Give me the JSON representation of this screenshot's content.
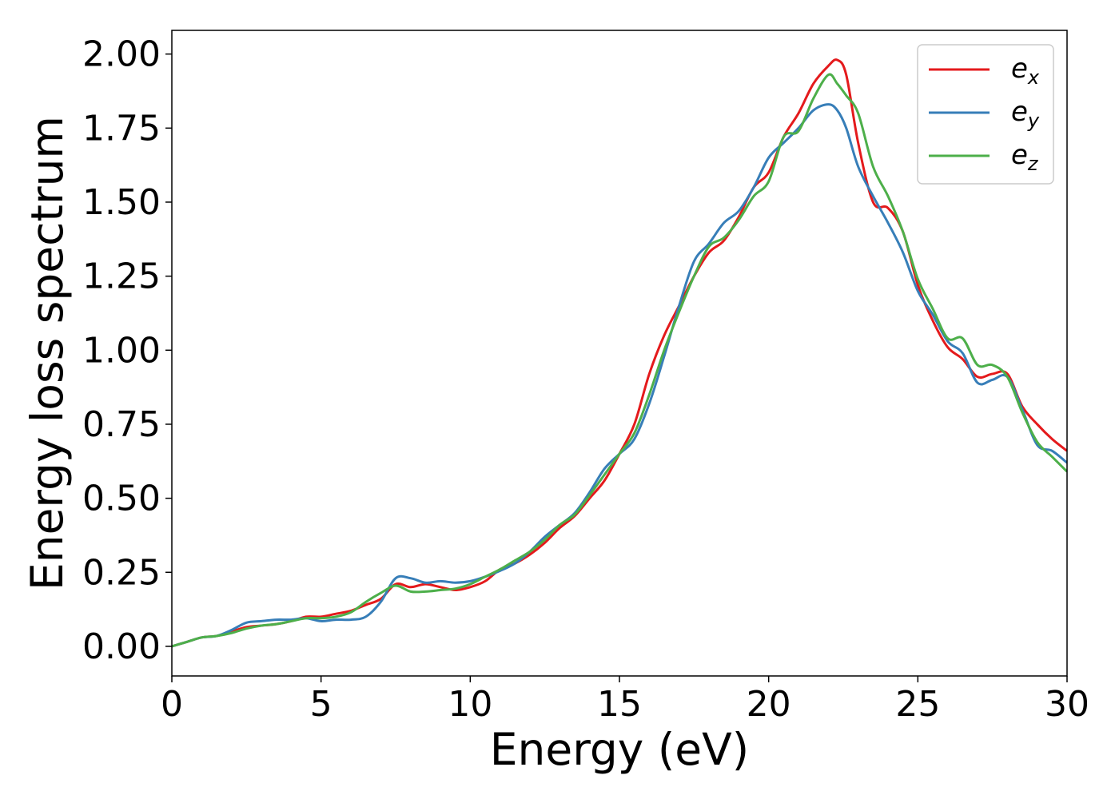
{
  "chart_data": {
    "type": "line",
    "title": "",
    "xlabel": "Energy (eV)",
    "ylabel": "Energy loss spectrum",
    "xlim": [
      0,
      30
    ],
    "ylim": [
      -0.1,
      2.08
    ],
    "xticks": [
      0,
      5,
      10,
      15,
      20,
      25,
      30
    ],
    "xtick_labels": [
      "0",
      "5",
      "10",
      "15",
      "20",
      "25",
      "30"
    ],
    "yticks": [
      0,
      0.25,
      0.5,
      0.75,
      1.0,
      1.25,
      1.5,
      1.75,
      2.0
    ],
    "ytick_labels": [
      "0.00",
      "0.25",
      "0.50",
      "0.75",
      "1.00",
      "1.25",
      "1.50",
      "1.75",
      "2.00"
    ],
    "grid": false,
    "legend_position": "top-right",
    "series": [
      {
        "name": "e_x",
        "label_main": "e",
        "label_sub": "x",
        "color": "#e41a1c",
        "x": [
          0,
          0.5,
          1,
          1.5,
          2,
          2.5,
          3,
          3.5,
          4,
          4.5,
          5,
          5.5,
          6,
          6.5,
          7,
          7.5,
          8,
          8.5,
          9,
          9.5,
          10,
          10.5,
          11,
          11.5,
          12,
          12.5,
          13,
          13.5,
          14,
          14.5,
          15,
          15.5,
          16,
          16.5,
          17,
          17.5,
          18,
          18.5,
          19,
          19.5,
          20,
          20.5,
          21,
          21.5,
          22,
          22.3,
          22.6,
          23,
          23.5,
          24,
          24.5,
          25,
          25.5,
          26,
          26.5,
          27,
          27.5,
          28,
          28.5,
          29,
          29.5,
          30
        ],
        "y": [
          0.0,
          0.015,
          0.03,
          0.035,
          0.05,
          0.065,
          0.07,
          0.075,
          0.085,
          0.1,
          0.1,
          0.11,
          0.12,
          0.14,
          0.16,
          0.21,
          0.2,
          0.21,
          0.2,
          0.19,
          0.2,
          0.22,
          0.26,
          0.28,
          0.31,
          0.35,
          0.4,
          0.44,
          0.5,
          0.56,
          0.65,
          0.75,
          0.92,
          1.05,
          1.15,
          1.25,
          1.33,
          1.37,
          1.45,
          1.55,
          1.6,
          1.72,
          1.8,
          1.9,
          1.96,
          1.98,
          1.93,
          1.7,
          1.5,
          1.48,
          1.4,
          1.22,
          1.1,
          1.01,
          0.97,
          0.91,
          0.92,
          0.92,
          0.81,
          0.75,
          0.7,
          0.66
        ]
      },
      {
        "name": "e_y",
        "label_main": "e",
        "label_sub": "y",
        "color": "#377eb8",
        "x": [
          0,
          0.5,
          1,
          1.5,
          2,
          2.5,
          3,
          3.5,
          4,
          4.5,
          5,
          5.5,
          6,
          6.5,
          7,
          7.5,
          8,
          8.5,
          9,
          9.5,
          10,
          10.5,
          11,
          11.5,
          12,
          12.5,
          13,
          13.5,
          14,
          14.5,
          15,
          15.5,
          16,
          16.5,
          17,
          17.5,
          18,
          18.5,
          19,
          19.5,
          20,
          20.5,
          21,
          21.5,
          22,
          22.3,
          22.6,
          23,
          23.5,
          24,
          24.5,
          25,
          25.5,
          26,
          26.5,
          27,
          27.5,
          28,
          28.5,
          29,
          29.5,
          30
        ],
        "y": [
          0.0,
          0.015,
          0.03,
          0.035,
          0.055,
          0.08,
          0.085,
          0.09,
          0.09,
          0.095,
          0.085,
          0.09,
          0.09,
          0.1,
          0.15,
          0.23,
          0.23,
          0.215,
          0.22,
          0.215,
          0.22,
          0.235,
          0.255,
          0.28,
          0.32,
          0.37,
          0.41,
          0.45,
          0.52,
          0.6,
          0.65,
          0.7,
          0.82,
          0.98,
          1.15,
          1.3,
          1.36,
          1.43,
          1.47,
          1.55,
          1.65,
          1.7,
          1.75,
          1.81,
          1.83,
          1.81,
          1.75,
          1.62,
          1.52,
          1.43,
          1.33,
          1.2,
          1.12,
          1.03,
          0.99,
          0.89,
          0.9,
          0.91,
          0.8,
          0.68,
          0.66,
          0.62
        ]
      },
      {
        "name": "e_z",
        "label_main": "e",
        "label_sub": "z",
        "color": "#4daf4a",
        "x": [
          0,
          0.5,
          1,
          1.5,
          2,
          2.5,
          3,
          3.5,
          4,
          4.5,
          5,
          5.5,
          6,
          6.5,
          7,
          7.5,
          8,
          8.5,
          9,
          9.5,
          10,
          10.5,
          11,
          11.5,
          12,
          12.5,
          13,
          13.5,
          14,
          14.5,
          15,
          15.5,
          16,
          16.5,
          17,
          17.5,
          18,
          18.5,
          19,
          19.5,
          20,
          20.5,
          21,
          21.5,
          22,
          22.3,
          22.6,
          23,
          23.5,
          24,
          24.5,
          25,
          25.5,
          26,
          26.5,
          27,
          27.5,
          28,
          28.5,
          29,
          29.5,
          30
        ],
        "y": [
          0.0,
          0.015,
          0.03,
          0.035,
          0.045,
          0.06,
          0.07,
          0.075,
          0.085,
          0.095,
          0.095,
          0.1,
          0.115,
          0.15,
          0.18,
          0.205,
          0.185,
          0.185,
          0.19,
          0.195,
          0.21,
          0.235,
          0.26,
          0.29,
          0.32,
          0.36,
          0.41,
          0.445,
          0.51,
          0.58,
          0.65,
          0.72,
          0.85,
          1.0,
          1.13,
          1.25,
          1.35,
          1.38,
          1.44,
          1.52,
          1.57,
          1.72,
          1.74,
          1.85,
          1.93,
          1.9,
          1.86,
          1.8,
          1.62,
          1.52,
          1.4,
          1.24,
          1.14,
          1.04,
          1.04,
          0.95,
          0.95,
          0.91,
          0.79,
          0.69,
          0.64,
          0.59
        ]
      }
    ]
  }
}
